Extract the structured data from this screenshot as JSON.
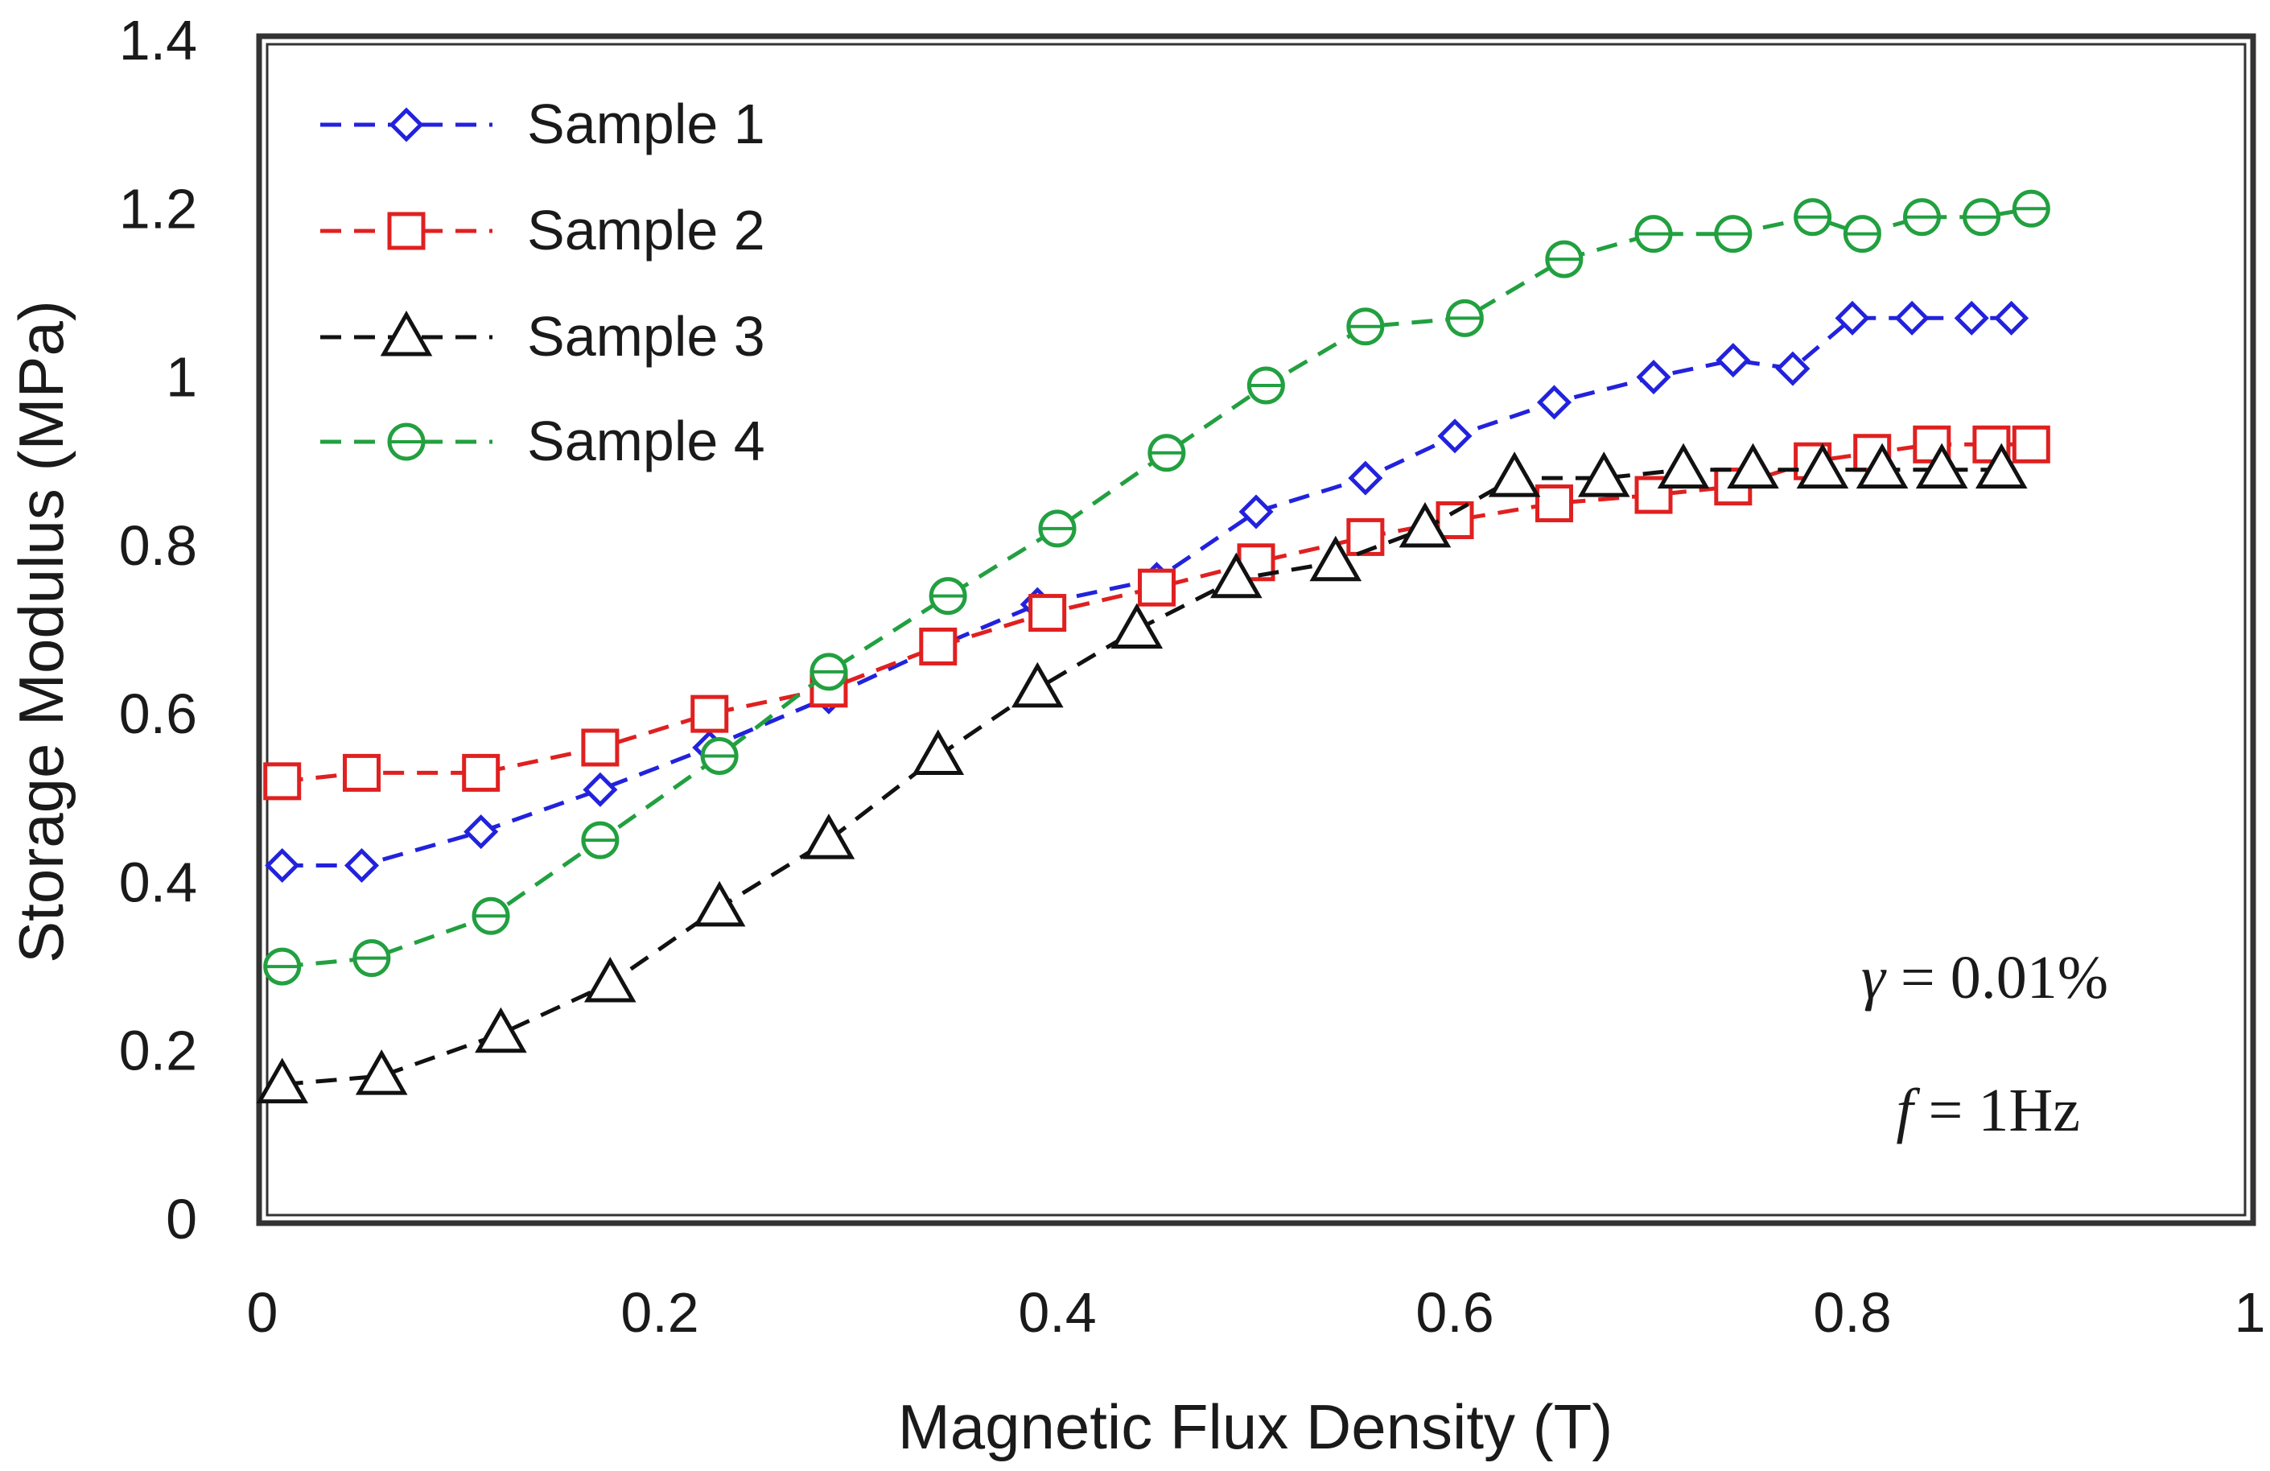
{
  "chart_data": {
    "type": "line",
    "title": "",
    "xlabel": "Magnetic Flux Density (T)",
    "ylabel": "Storage Modulus (MPa)",
    "xlim": [
      0,
      1
    ],
    "ylim": [
      0,
      1.4
    ],
    "xticks": [
      0,
      0.2,
      0.4,
      0.6,
      0.8,
      1
    ],
    "xtick_labels": [
      "0",
      "0.2",
      "0.4",
      "0.6",
      "0.8",
      "1"
    ],
    "yticks": [
      0,
      0.2,
      0.4,
      0.6,
      0.8,
      1,
      1.2,
      1.4
    ],
    "ytick_labels": [
      "0",
      "0.2",
      "0.4",
      "0.6",
      "0.8",
      "1",
      "1.2",
      "1.4"
    ],
    "grid": false,
    "legend_position": "top-left",
    "series": [
      {
        "name": "Sample 1",
        "color": "#2222dd",
        "marker": "diamond",
        "x": [
          0.01,
          0.05,
          0.11,
          0.17,
          0.225,
          0.285,
          0.34,
          0.39,
          0.45,
          0.5,
          0.555,
          0.6,
          0.65,
          0.7,
          0.74,
          0.77,
          0.8,
          0.83,
          0.86,
          0.88
        ],
        "y": [
          0.42,
          0.42,
          0.46,
          0.51,
          0.56,
          0.62,
          0.68,
          0.73,
          0.76,
          0.84,
          0.88,
          0.93,
          0.97,
          1.0,
          1.02,
          1.01,
          1.07,
          1.07,
          1.07,
          1.07
        ]
      },
      {
        "name": "Sample 2",
        "color": "#e02020",
        "marker": "square",
        "x": [
          0.01,
          0.05,
          0.11,
          0.17,
          0.225,
          0.285,
          0.34,
          0.395,
          0.45,
          0.5,
          0.555,
          0.6,
          0.65,
          0.7,
          0.74,
          0.78,
          0.81,
          0.84,
          0.87,
          0.89
        ],
        "y": [
          0.52,
          0.53,
          0.53,
          0.56,
          0.6,
          0.63,
          0.68,
          0.72,
          0.75,
          0.78,
          0.81,
          0.83,
          0.85,
          0.86,
          0.87,
          0.9,
          0.91,
          0.92,
          0.92,
          0.92
        ]
      },
      {
        "name": "Sample 3",
        "color": "#111111",
        "marker": "triangle",
        "x": [
          0.01,
          0.06,
          0.12,
          0.175,
          0.23,
          0.285,
          0.34,
          0.39,
          0.44,
          0.49,
          0.54,
          0.585,
          0.63,
          0.675,
          0.715,
          0.75,
          0.785,
          0.815,
          0.845,
          0.875
        ],
        "y": [
          0.16,
          0.17,
          0.22,
          0.28,
          0.37,
          0.45,
          0.55,
          0.63,
          0.7,
          0.76,
          0.78,
          0.82,
          0.88,
          0.88,
          0.89,
          0.89,
          0.89,
          0.89,
          0.89,
          0.89
        ]
      },
      {
        "name": "Sample 4",
        "color": "#22a040",
        "marker": "circle",
        "x": [
          0.01,
          0.055,
          0.115,
          0.17,
          0.23,
          0.285,
          0.345,
          0.4,
          0.455,
          0.505,
          0.555,
          0.605,
          0.655,
          0.7,
          0.74,
          0.78,
          0.805,
          0.835,
          0.865,
          0.89
        ],
        "y": [
          0.3,
          0.31,
          0.36,
          0.45,
          0.55,
          0.65,
          0.74,
          0.82,
          0.91,
          0.99,
          1.06,
          1.07,
          1.14,
          1.17,
          1.17,
          1.19,
          1.17,
          1.19,
          1.19,
          1.2
        ]
      }
    ],
    "annotations": [
      {
        "symbol": "γ",
        "text": " = 0.01%"
      },
      {
        "symbol": "f",
        "text": " = 1Hz"
      }
    ]
  }
}
